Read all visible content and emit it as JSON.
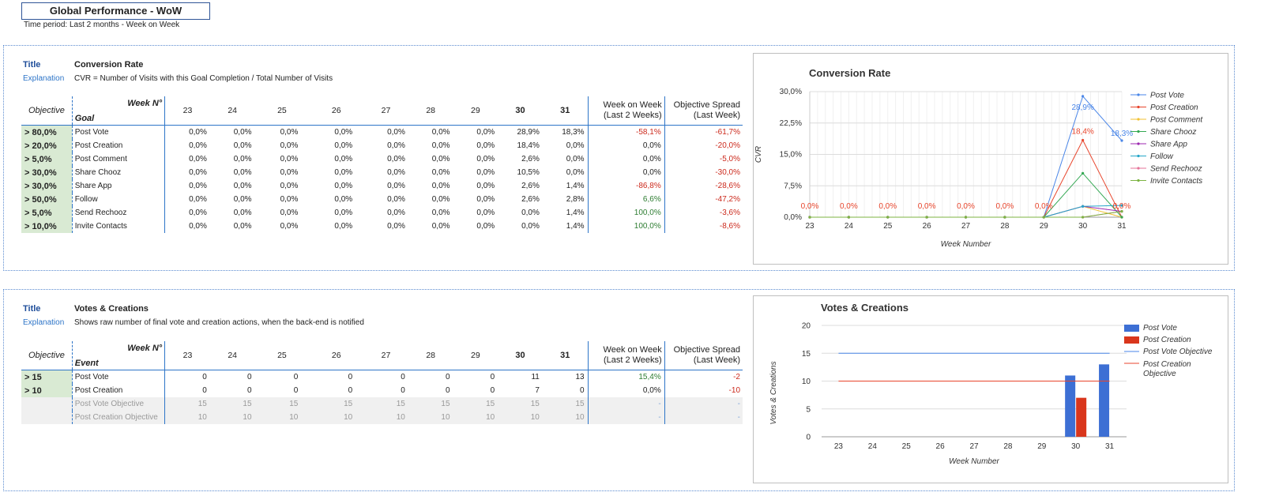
{
  "header": {
    "title": "Global Performance - WoW",
    "time_period": "Time period: Last 2 months - Week on Week"
  },
  "labels": {
    "title": "Title",
    "explanation": "Explanation",
    "objective": "Objective",
    "week_no": "Week N°",
    "wow_line1": "Week on Week",
    "wow_line2": "(Last 2 Weeks)",
    "spread_line1": "Objective Spread",
    "spread_line2": "(Last Week)"
  },
  "weeks": [
    "23",
    "24",
    "25",
    "26",
    "27",
    "28",
    "29",
    "30",
    "31"
  ],
  "section1": {
    "name": "Conversion Rate",
    "explanation": "CVR = Number of Visits with this Goal Completion / Total Number of Visits",
    "row_header": "Goal",
    "rows": [
      {
        "objective": "> 80,0%",
        "name": "Post Vote",
        "values": [
          "0,0%",
          "0,0%",
          "0,0%",
          "0,0%",
          "0,0%",
          "0,0%",
          "0,0%",
          "28,9%",
          "18,3%"
        ],
        "wow": "-58,1%",
        "spread": "-61,7%"
      },
      {
        "objective": "> 20,0%",
        "name": "Post Creation",
        "values": [
          "0,0%",
          "0,0%",
          "0,0%",
          "0,0%",
          "0,0%",
          "0,0%",
          "0,0%",
          "18,4%",
          "0,0%"
        ],
        "wow": "0,0%",
        "spread": "-20,0%"
      },
      {
        "objective": "> 5,0%",
        "name": "Post Comment",
        "values": [
          "0,0%",
          "0,0%",
          "0,0%",
          "0,0%",
          "0,0%",
          "0,0%",
          "0,0%",
          "2,6%",
          "0,0%"
        ],
        "wow": "0,0%",
        "spread": "-5,0%"
      },
      {
        "objective": "> 30,0%",
        "name": "Share Chooz",
        "values": [
          "0,0%",
          "0,0%",
          "0,0%",
          "0,0%",
          "0,0%",
          "0,0%",
          "0,0%",
          "10,5%",
          "0,0%"
        ],
        "wow": "0,0%",
        "spread": "-30,0%"
      },
      {
        "objective": "> 30,0%",
        "name": "Share App",
        "values": [
          "0,0%",
          "0,0%",
          "0,0%",
          "0,0%",
          "0,0%",
          "0,0%",
          "0,0%",
          "2,6%",
          "1,4%"
        ],
        "wow": "-86,8%",
        "spread": "-28,6%"
      },
      {
        "objective": "> 50,0%",
        "name": "Follow",
        "values": [
          "0,0%",
          "0,0%",
          "0,0%",
          "0,0%",
          "0,0%",
          "0,0%",
          "0,0%",
          "2,6%",
          "2,8%"
        ],
        "wow": "6,6%",
        "spread": "-47,2%"
      },
      {
        "objective": "> 5,0%",
        "name": "Send Rechooz",
        "values": [
          "0,0%",
          "0,0%",
          "0,0%",
          "0,0%",
          "0,0%",
          "0,0%",
          "0,0%",
          "0,0%",
          "1,4%"
        ],
        "wow": "100,0%",
        "spread": "-3,6%"
      },
      {
        "objective": "> 10,0%",
        "name": "Invite Contacts",
        "values": [
          "0,0%",
          "0,0%",
          "0,0%",
          "0,0%",
          "0,0%",
          "0,0%",
          "0,0%",
          "0,0%",
          "1,4%"
        ],
        "wow": "100,0%",
        "spread": "-8,6%"
      }
    ]
  },
  "section2": {
    "name": "Votes & Creations",
    "explanation": "Shows raw number of final vote and creation actions, when the back-end is notified",
    "row_header": "Event",
    "rows": [
      {
        "objective": "> 15",
        "name": "Post Vote",
        "values": [
          "0",
          "0",
          "0",
          "0",
          "0",
          "0",
          "0",
          "11",
          "13"
        ],
        "wow": "15,4%",
        "spread": "-2"
      },
      {
        "objective": "> 10",
        "name": "Post Creation",
        "values": [
          "0",
          "0",
          "0",
          "0",
          "0",
          "0",
          "0",
          "7",
          "0"
        ],
        "wow": "0,0%",
        "spread": "-10"
      }
    ],
    "grey_rows": [
      {
        "name": "Post Vote Objective",
        "values": [
          "15",
          "15",
          "15",
          "15",
          "15",
          "15",
          "15",
          "15",
          "15"
        ],
        "wow": "-",
        "spread": "-"
      },
      {
        "name": "Post Creation Objective",
        "values": [
          "10",
          "10",
          "10",
          "10",
          "10",
          "10",
          "10",
          "10",
          "10"
        ],
        "wow": "-",
        "spread": "-"
      }
    ]
  },
  "colors": {
    "post_vote": "#4a86e8",
    "post_creation": "#e8452c",
    "post_comment": "#f1c232",
    "share_chooz": "#34a853",
    "share_app": "#9c27b0",
    "follow": "#26a6c9",
    "send_rechooz": "#e57399",
    "invite_contacts": "#7cb342",
    "bar_vote": "#3d6fd4",
    "bar_creation": "#d9361c"
  },
  "chart_data": [
    {
      "type": "line",
      "title": "Conversion Rate",
      "xlabel": "Week Number",
      "ylabel": "CVR",
      "x": [
        "23",
        "24",
        "25",
        "26",
        "27",
        "28",
        "29",
        "30",
        "31"
      ],
      "ylim": [
        0,
        30
      ],
      "yticks": [
        "0,0%",
        "7,5%",
        "15,0%",
        "22,5%",
        "30,0%"
      ],
      "data_labels": [
        "0,0%",
        "0,0%",
        "0,0%",
        "0,0%",
        "0,0%",
        "0,0%",
        "0,0%",
        "28,9%",
        "18,4%",
        "18,3%",
        "0,0%"
      ],
      "series": [
        {
          "name": "Post Vote",
          "color_key": "post_vote",
          "values": [
            0,
            0,
            0,
            0,
            0,
            0,
            0,
            28.9,
            18.3
          ]
        },
        {
          "name": "Post Creation",
          "color_key": "post_creation",
          "values": [
            0,
            0,
            0,
            0,
            0,
            0,
            0,
            18.4,
            0
          ]
        },
        {
          "name": "Post Comment",
          "color_key": "post_comment",
          "values": [
            0,
            0,
            0,
            0,
            0,
            0,
            0,
            2.6,
            0
          ]
        },
        {
          "name": "Share Chooz",
          "color_key": "share_chooz",
          "values": [
            0,
            0,
            0,
            0,
            0,
            0,
            0,
            10.5,
            0
          ]
        },
        {
          "name": "Share App",
          "color_key": "share_app",
          "values": [
            0,
            0,
            0,
            0,
            0,
            0,
            0,
            2.6,
            1.4
          ]
        },
        {
          "name": "Follow",
          "color_key": "follow",
          "values": [
            0,
            0,
            0,
            0,
            0,
            0,
            0,
            2.6,
            2.8
          ]
        },
        {
          "name": "Send Rechooz",
          "color_key": "send_rechooz",
          "values": [
            0,
            0,
            0,
            0,
            0,
            0,
            0,
            0,
            1.4
          ]
        },
        {
          "name": "Invite Contacts",
          "color_key": "invite_contacts",
          "values": [
            0,
            0,
            0,
            0,
            0,
            0,
            0,
            0,
            1.4
          ]
        }
      ]
    },
    {
      "type": "bar",
      "title": "Votes & Creations",
      "xlabel": "Week Number",
      "ylabel": "Votes & Creations",
      "categories": [
        "23",
        "24",
        "25",
        "26",
        "27",
        "28",
        "29",
        "30",
        "31"
      ],
      "ylim": [
        0,
        20
      ],
      "yticks": [
        "0",
        "5",
        "10",
        "15",
        "20"
      ],
      "series": [
        {
          "name": "Post Vote",
          "kind": "bar",
          "color_key": "bar_vote",
          "values": [
            0,
            0,
            0,
            0,
            0,
            0,
            0,
            11,
            13
          ]
        },
        {
          "name": "Post Creation",
          "kind": "bar",
          "color_key": "bar_creation",
          "values": [
            0,
            0,
            0,
            0,
            0,
            0,
            0,
            7,
            0
          ]
        },
        {
          "name": "Post Vote Objective",
          "kind": "line",
          "color_key": "post_vote",
          "values": [
            15,
            15,
            15,
            15,
            15,
            15,
            15,
            15,
            15
          ]
        },
        {
          "name": "Post Creation Objective",
          "kind": "line",
          "color_key": "post_creation",
          "values": [
            10,
            10,
            10,
            10,
            10,
            10,
            10,
            10,
            10
          ]
        }
      ]
    }
  ]
}
